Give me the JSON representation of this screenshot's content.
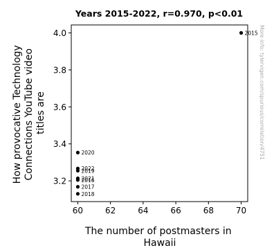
{
  "chart_data": {
    "type": "scatter",
    "title": "Years 2015-2022, r=0.970, p<0.01",
    "xlabel": "The number of postmasters in Hawaii",
    "ylabel": "How provocative Technology Connections YouTube video titles are",
    "xlim": [
      59.6,
      70.4
    ],
    "ylim": [
      3.088,
      4.043
    ],
    "xticks": [
      60,
      62,
      64,
      66,
      68,
      70
    ],
    "yticks": [
      3.2,
      3.4,
      3.6,
      3.8,
      4.0
    ],
    "xtick_labels": [
      "60",
      "62",
      "64",
      "66",
      "68",
      "70"
    ],
    "ytick_labels": [
      "3.2",
      "3.4",
      "3.6",
      "3.8",
      "4.0"
    ],
    "grid": false,
    "points": [
      {
        "x": 70,
        "y": 4.0,
        "label": "2015"
      },
      {
        "x": 60,
        "y": 3.353,
        "label": "2020"
      },
      {
        "x": 60,
        "y": 3.267,
        "label": "2022"
      },
      {
        "x": 60,
        "y": 3.255,
        "label": "2019"
      },
      {
        "x": 60,
        "y": 3.214,
        "label": "2021"
      },
      {
        "x": 60,
        "y": 3.205,
        "label": "2016"
      },
      {
        "x": 60,
        "y": 3.168,
        "label": "2017"
      },
      {
        "x": 60,
        "y": 3.13,
        "label": "2018"
      }
    ],
    "watermark": "More info: tylervigen.com/spurious/correlation/4751"
  }
}
